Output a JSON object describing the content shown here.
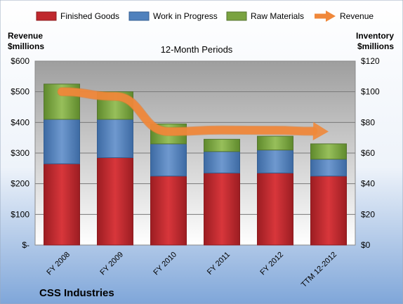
{
  "chart_data": {
    "type": "bar",
    "stacked": true,
    "title": "12-Month Periods",
    "footer_title": "CSS Industries",
    "categories": [
      "FY 2008",
      "FY 2009",
      "FY 2010",
      "FY 2011",
      "FY 2012",
      "TTM 12-2012"
    ],
    "series": [
      {
        "name": "Finished Goods",
        "axis": "right",
        "color": "#c0282d",
        "values": [
          53,
          57,
          45,
          47,
          47,
          45
        ]
      },
      {
        "name": "Work in Progress",
        "axis": "right",
        "color": "#4f81bd",
        "values": [
          29,
          25,
          21,
          14,
          15,
          11
        ]
      },
      {
        "name": "Raw Materials",
        "axis": "right",
        "color": "#7aa340",
        "values": [
          23,
          18,
          13,
          8,
          9,
          10
        ]
      },
      {
        "name": "Revenue",
        "axis": "left",
        "type": "line",
        "color": "#f0883a",
        "values": [
          500,
          485,
          370,
          375,
          374,
          370
        ]
      }
    ],
    "left_axis": {
      "label_line1": "Revenue",
      "label_line2": "$millions",
      "range": [
        0,
        600
      ],
      "ticks": [
        0,
        100,
        200,
        300,
        400,
        500,
        600
      ],
      "tick_labels": [
        "$-",
        "$100",
        "$200",
        "$300",
        "$400",
        "$500",
        "$600"
      ]
    },
    "right_axis": {
      "label_line1": "Inventory",
      "label_line2": "$millions",
      "range": [
        0,
        120
      ],
      "ticks": [
        0,
        20,
        40,
        60,
        80,
        100,
        120
      ],
      "tick_labels": [
        "$0",
        "$20",
        "$40",
        "$60",
        "$80",
        "$100",
        "$120"
      ]
    },
    "grid": true,
    "legend_position": "top"
  }
}
